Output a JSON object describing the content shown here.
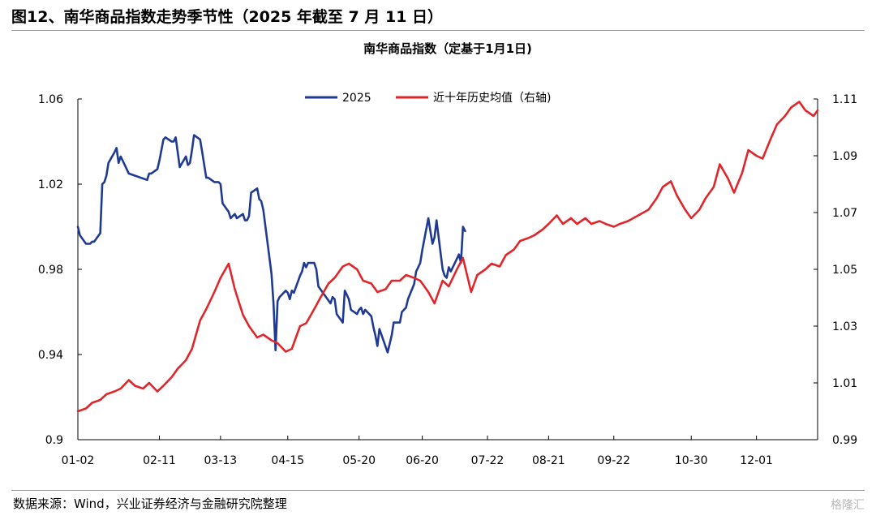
{
  "figure": {
    "title": "图12、南华商品指数走势季节性（2025 年截至 7 月 11 日）",
    "source": "数据来源：Wind，兴业证券经济与金融研究院整理",
    "watermark": "格隆汇"
  },
  "colors": {
    "series_2025": "#1f3a93",
    "series_avg": "#e0262b",
    "axis": "#000000"
  },
  "chart_data": {
    "type": "line",
    "title": "南华商品指数（定基于1月1日)",
    "x_ticks": [
      "01-02",
      "02-11",
      "03-13",
      "04-15",
      "05-20",
      "06-20",
      "07-22",
      "08-21",
      "09-22",
      "10-30",
      "12-01"
    ],
    "x_range": [
      "01-02",
      "12-31"
    ],
    "ylim_left": [
      0.9,
      1.06
    ],
    "yticks_left": [
      "1.06",
      "1.02",
      "0.98",
      "0.94",
      "0.9"
    ],
    "ylim_right": [
      0.99,
      1.11
    ],
    "yticks_right": [
      "1.11",
      "1.09",
      "1.07",
      "1.05",
      "1.03",
      "1.01",
      "0.99"
    ],
    "grid": false,
    "legend_position": "top-center",
    "series": [
      {
        "name": "2025",
        "axis": "left",
        "color": "#1f3a93",
        "points": [
          [
            "01-02",
            1.0
          ],
          [
            "01-03",
            0.996
          ],
          [
            "01-06",
            0.992
          ],
          [
            "01-07",
            0.992
          ],
          [
            "01-08",
            0.992
          ],
          [
            "01-09",
            0.993
          ],
          [
            "01-10",
            0.993
          ],
          [
            "01-13",
            0.997
          ],
          [
            "01-14",
            1.02
          ],
          [
            "01-15",
            1.021
          ],
          [
            "01-16",
            1.024
          ],
          [
            "01-17",
            1.03
          ],
          [
            "01-20",
            1.035
          ],
          [
            "01-21",
            1.037
          ],
          [
            "01-22",
            1.03
          ],
          [
            "01-23",
            1.033
          ],
          [
            "01-24",
            1.031
          ],
          [
            "01-27",
            1.025
          ],
          [
            "02-05",
            1.022
          ],
          [
            "02-06",
            1.025
          ],
          [
            "02-07",
            1.025
          ],
          [
            "02-10",
            1.027
          ],
          [
            "02-11",
            1.031
          ],
          [
            "02-12",
            1.036
          ],
          [
            "02-13",
            1.041
          ],
          [
            "02-14",
            1.042
          ],
          [
            "02-17",
            1.04
          ],
          [
            "02-18",
            1.04
          ],
          [
            "02-19",
            1.042
          ],
          [
            "02-20",
            1.035
          ],
          [
            "02-21",
            1.028
          ],
          [
            "02-24",
            1.033
          ],
          [
            "02-25",
            1.029
          ],
          [
            "02-26",
            1.03
          ],
          [
            "02-27",
            1.036
          ],
          [
            "02-28",
            1.043
          ],
          [
            "03-03",
            1.041
          ],
          [
            "03-04",
            1.035
          ],
          [
            "03-05",
            1.029
          ],
          [
            "03-06",
            1.023
          ],
          [
            "03-07",
            1.023
          ],
          [
            "03-10",
            1.021
          ],
          [
            "03-11",
            1.021
          ],
          [
            "03-12",
            1.021
          ],
          [
            "03-13",
            1.02
          ],
          [
            "03-14",
            1.011
          ],
          [
            "03-17",
            1.007
          ],
          [
            "03-18",
            1.004
          ],
          [
            "03-19",
            1.005
          ],
          [
            "03-20",
            1.006
          ],
          [
            "03-21",
            1.004
          ],
          [
            "03-24",
            1.006
          ],
          [
            "03-25",
            1.003
          ],
          [
            "03-26",
            1.003
          ],
          [
            "03-27",
            1.005
          ],
          [
            "03-28",
            1.016
          ],
          [
            "03-31",
            1.018
          ],
          [
            "04-01",
            1.013
          ],
          [
            "04-02",
            1.012
          ],
          [
            "04-03",
            1.008
          ],
          [
            "04-07",
            0.978
          ],
          [
            "04-08",
            0.964
          ],
          [
            "04-09",
            0.942
          ],
          [
            "04-10",
            0.965
          ],
          [
            "04-11",
            0.967
          ],
          [
            "04-14",
            0.97
          ],
          [
            "04-15",
            0.969
          ],
          [
            "04-16",
            0.966
          ],
          [
            "04-17",
            0.97
          ],
          [
            "04-18",
            0.969
          ],
          [
            "04-21",
            0.977
          ],
          [
            "04-22",
            0.979
          ],
          [
            "04-23",
            0.983
          ],
          [
            "04-24",
            0.981
          ],
          [
            "04-25",
            0.983
          ],
          [
            "04-28",
            0.983
          ],
          [
            "04-29",
            0.98
          ],
          [
            "04-30",
            0.972
          ],
          [
            "05-06",
            0.964
          ],
          [
            "05-07",
            0.967
          ],
          [
            "05-08",
            0.966
          ],
          [
            "05-09",
            0.959
          ],
          [
            "05-12",
            0.955
          ],
          [
            "05-13",
            0.97
          ],
          [
            "05-14",
            0.968
          ],
          [
            "05-15",
            0.966
          ],
          [
            "05-16",
            0.961
          ],
          [
            "05-19",
            0.959
          ],
          [
            "05-20",
            0.961
          ],
          [
            "05-21",
            0.962
          ],
          [
            "05-22",
            0.959
          ],
          [
            "05-23",
            0.961
          ],
          [
            "05-26",
            0.958
          ],
          [
            "05-27",
            0.953
          ],
          [
            "05-28",
            0.949
          ],
          [
            "05-29",
            0.944
          ],
          [
            "05-30",
            0.952
          ],
          [
            "06-03",
            0.941
          ],
          [
            "06-04",
            0.945
          ],
          [
            "06-05",
            0.949
          ],
          [
            "06-06",
            0.955
          ],
          [
            "06-09",
            0.955
          ],
          [
            "06-10",
            0.96
          ],
          [
            "06-11",
            0.961
          ],
          [
            "06-12",
            0.962
          ],
          [
            "06-13",
            0.966
          ],
          [
            "06-16",
            0.973
          ],
          [
            "06-17",
            0.979
          ],
          [
            "06-18",
            0.981
          ],
          [
            "06-19",
            0.983
          ],
          [
            "06-20",
            0.989
          ],
          [
            "06-23",
            1.004
          ],
          [
            "06-24",
            0.998
          ],
          [
            "06-25",
            0.992
          ],
          [
            "06-26",
            0.995
          ],
          [
            "06-27",
            1.003
          ],
          [
            "06-30",
            0.98
          ],
          [
            "07-01",
            0.977
          ],
          [
            "07-02",
            0.976
          ],
          [
            "07-03",
            0.981
          ],
          [
            "07-04",
            0.979
          ],
          [
            "07-07",
            0.985
          ],
          [
            "07-08",
            0.987
          ],
          [
            "07-09",
            0.983
          ],
          [
            "07-10",
            1.0
          ],
          [
            "07-11",
            0.998
          ]
        ]
      },
      {
        "name": "近十年历史均值（右轴)",
        "axis": "right",
        "color": "#e0262b",
        "points": [
          [
            "01-02",
            1.0
          ],
          [
            "01-06",
            1.001
          ],
          [
            "01-09",
            1.003
          ],
          [
            "01-13",
            1.004
          ],
          [
            "01-16",
            1.006
          ],
          [
            "01-20",
            1.007
          ],
          [
            "01-23",
            1.008
          ],
          [
            "01-27",
            1.011
          ],
          [
            "01-30",
            1.009
          ],
          [
            "02-03",
            1.008
          ],
          [
            "02-06",
            1.01
          ],
          [
            "02-10",
            1.007
          ],
          [
            "02-13",
            1.009
          ],
          [
            "02-17",
            1.012
          ],
          [
            "02-20",
            1.015
          ],
          [
            "02-24",
            1.018
          ],
          [
            "02-27",
            1.022
          ],
          [
            "03-03",
            1.032
          ],
          [
            "03-06",
            1.036
          ],
          [
            "03-10",
            1.042
          ],
          [
            "03-13",
            1.047
          ],
          [
            "03-17",
            1.052
          ],
          [
            "03-20",
            1.043
          ],
          [
            "03-24",
            1.034
          ],
          [
            "03-27",
            1.03
          ],
          [
            "03-31",
            1.026
          ],
          [
            "04-03",
            1.027
          ],
          [
            "04-07",
            1.025
          ],
          [
            "04-10",
            1.024
          ],
          [
            "04-14",
            1.021
          ],
          [
            "04-17",
            1.022
          ],
          [
            "04-21",
            1.03
          ],
          [
            "04-24",
            1.031
          ],
          [
            "04-28",
            1.036
          ],
          [
            "05-01",
            1.04
          ],
          [
            "05-05",
            1.045
          ],
          [
            "05-08",
            1.047
          ],
          [
            "05-12",
            1.051
          ],
          [
            "05-15",
            1.052
          ],
          [
            "05-19",
            1.05
          ],
          [
            "05-22",
            1.046
          ],
          [
            "05-26",
            1.045
          ],
          [
            "05-29",
            1.042
          ],
          [
            "06-02",
            1.043
          ],
          [
            "06-05",
            1.046
          ],
          [
            "06-09",
            1.046
          ],
          [
            "06-12",
            1.048
          ],
          [
            "06-16",
            1.047
          ],
          [
            "06-19",
            1.046
          ],
          [
            "06-23",
            1.042
          ],
          [
            "06-26",
            1.038
          ],
          [
            "06-30",
            1.046
          ],
          [
            "07-03",
            1.044
          ],
          [
            "07-07",
            1.05
          ],
          [
            "07-10",
            1.054
          ],
          [
            "07-14",
            1.042
          ],
          [
            "07-17",
            1.048
          ],
          [
            "07-21",
            1.05
          ],
          [
            "07-24",
            1.052
          ],
          [
            "07-28",
            1.051
          ],
          [
            "07-31",
            1.055
          ],
          [
            "08-04",
            1.057
          ],
          [
            "08-07",
            1.06
          ],
          [
            "08-11",
            1.061
          ],
          [
            "08-14",
            1.062
          ],
          [
            "08-18",
            1.064
          ],
          [
            "08-21",
            1.066
          ],
          [
            "08-25",
            1.069
          ],
          [
            "08-28",
            1.066
          ],
          [
            "09-01",
            1.068
          ],
          [
            "09-04",
            1.066
          ],
          [
            "09-08",
            1.068
          ],
          [
            "09-11",
            1.066
          ],
          [
            "09-15",
            1.067
          ],
          [
            "09-18",
            1.066
          ],
          [
            "09-22",
            1.065
          ],
          [
            "09-25",
            1.066
          ],
          [
            "09-29",
            1.067
          ],
          [
            "10-09",
            1.071
          ],
          [
            "10-13",
            1.075
          ],
          [
            "10-16",
            1.079
          ],
          [
            "10-20",
            1.081
          ],
          [
            "10-23",
            1.076
          ],
          [
            "10-27",
            1.071
          ],
          [
            "10-30",
            1.068
          ],
          [
            "11-03",
            1.071
          ],
          [
            "11-06",
            1.075
          ],
          [
            "11-10",
            1.079
          ],
          [
            "11-13",
            1.087
          ],
          [
            "11-17",
            1.082
          ],
          [
            "11-20",
            1.077
          ],
          [
            "11-24",
            1.084
          ],
          [
            "11-27",
            1.092
          ],
          [
            "12-01",
            1.09
          ],
          [
            "12-04",
            1.089
          ],
          [
            "12-08",
            1.096
          ],
          [
            "12-11",
            1.101
          ],
          [
            "12-15",
            1.104
          ],
          [
            "12-18",
            1.107
          ],
          [
            "12-22",
            1.109
          ],
          [
            "12-25",
            1.106
          ],
          [
            "12-29",
            1.104
          ],
          [
            "12-31",
            1.106
          ]
        ]
      }
    ]
  }
}
